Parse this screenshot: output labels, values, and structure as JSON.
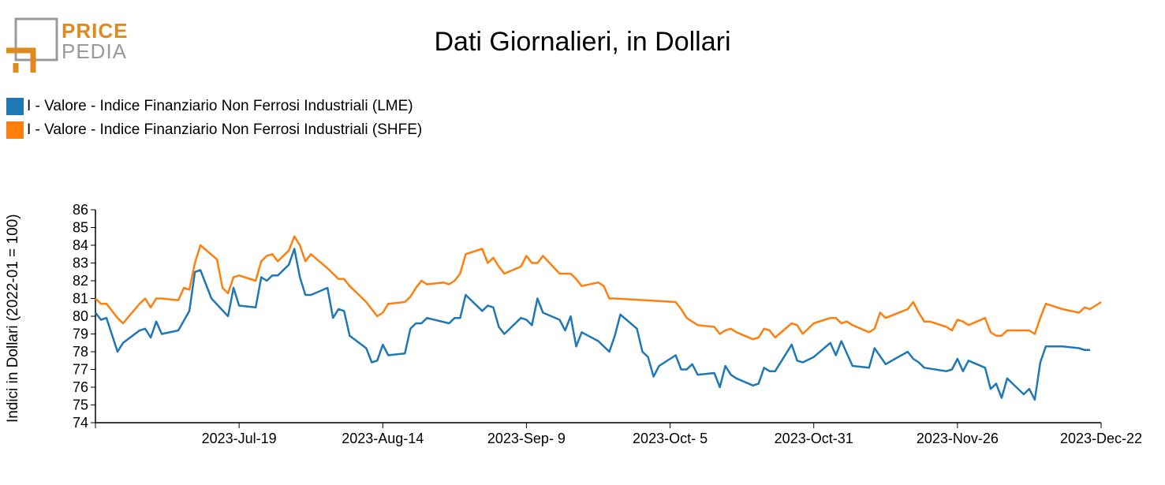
{
  "logo": {
    "line1": "PRICE",
    "line2": "PEDIA"
  },
  "chart_data": {
    "type": "line",
    "title": "Dati Giornalieri, in Dollari",
    "xlabel": "",
    "ylabel": "Indici in Dollari (2022-01 = 100)",
    "ylim": [
      74,
      86
    ],
    "yticks": [
      74,
      75,
      76,
      77,
      78,
      79,
      80,
      81,
      82,
      83,
      84,
      85,
      86
    ],
    "xlim": [
      "2023-06-23",
      "2023-12-22"
    ],
    "xtick_labels": [
      "2023-Jul-19",
      "2023-Aug-14",
      "2023-Sep- 9",
      "2023-Oct- 5",
      "2023-Oct-31",
      "2023-Nov-26",
      "2023-Dec-22"
    ],
    "xtick_dates": [
      "2023-07-19",
      "2023-08-14",
      "2023-09-09",
      "2023-10-05",
      "2023-10-31",
      "2023-11-26",
      "2023-12-22"
    ],
    "grid": false,
    "legend_position": "top-left",
    "series": [
      {
        "name": "I - Valore - Indice Finanziario Non Ferrosi Industriali (LME)",
        "color": "#1f77b4",
        "points": [
          [
            "2023-06-23",
            80.2
          ],
          [
            "2023-06-24",
            79.8
          ],
          [
            "2023-06-25",
            79.9
          ],
          [
            "2023-06-27",
            78.0
          ],
          [
            "2023-06-28",
            78.5
          ],
          [
            "2023-07-01",
            79.2
          ],
          [
            "2023-07-02",
            79.3
          ],
          [
            "2023-07-03",
            78.8
          ],
          [
            "2023-07-04",
            79.7
          ],
          [
            "2023-07-05",
            79.0
          ],
          [
            "2023-07-08",
            79.2
          ],
          [
            "2023-07-10",
            80.3
          ],
          [
            "2023-07-11",
            82.5
          ],
          [
            "2023-07-12",
            82.6
          ],
          [
            "2023-07-14",
            81.0
          ],
          [
            "2023-07-17",
            80.0
          ],
          [
            "2023-07-18",
            81.6
          ],
          [
            "2023-07-19",
            80.6
          ],
          [
            "2023-07-22",
            80.5
          ],
          [
            "2023-07-23",
            82.2
          ],
          [
            "2023-07-24",
            82.0
          ],
          [
            "2023-07-25",
            82.3
          ],
          [
            "2023-07-26",
            82.3
          ],
          [
            "2023-07-28",
            82.9
          ],
          [
            "2023-07-29",
            83.8
          ],
          [
            "2023-07-30",
            82.2
          ],
          [
            "2023-07-31",
            81.2
          ],
          [
            "2023-08-01",
            81.2
          ],
          [
            "2023-08-04",
            81.6
          ],
          [
            "2023-08-05",
            79.9
          ],
          [
            "2023-08-06",
            80.4
          ],
          [
            "2023-08-07",
            80.3
          ],
          [
            "2023-08-08",
            78.9
          ],
          [
            "2023-08-11",
            78.2
          ],
          [
            "2023-08-12",
            77.4
          ],
          [
            "2023-08-13",
            77.5
          ],
          [
            "2023-08-14",
            78.4
          ],
          [
            "2023-08-15",
            77.8
          ],
          [
            "2023-08-18",
            77.9
          ],
          [
            "2023-08-19",
            79.3
          ],
          [
            "2023-08-20",
            79.6
          ],
          [
            "2023-08-21",
            79.6
          ],
          [
            "2023-08-22",
            79.9
          ],
          [
            "2023-08-26",
            79.6
          ],
          [
            "2023-08-27",
            79.9
          ],
          [
            "2023-08-28",
            79.9
          ],
          [
            "2023-08-29",
            81.2
          ],
          [
            "2023-09-01",
            80.3
          ],
          [
            "2023-09-02",
            80.6
          ],
          [
            "2023-09-03",
            80.5
          ],
          [
            "2023-09-04",
            79.4
          ],
          [
            "2023-09-05",
            79.0
          ],
          [
            "2023-09-08",
            79.9
          ],
          [
            "2023-09-09",
            79.8
          ],
          [
            "2023-09-10",
            79.5
          ],
          [
            "2023-09-11",
            81.0
          ],
          [
            "2023-09-12",
            80.2
          ],
          [
            "2023-09-15",
            79.8
          ],
          [
            "2023-09-16",
            79.2
          ],
          [
            "2023-09-17",
            80.0
          ],
          [
            "2023-09-18",
            78.3
          ],
          [
            "2023-09-19",
            79.1
          ],
          [
            "2023-09-22",
            78.6
          ],
          [
            "2023-09-24",
            78.0
          ],
          [
            "2023-09-25",
            78.9
          ],
          [
            "2023-09-26",
            80.1
          ],
          [
            "2023-09-29",
            79.3
          ],
          [
            "2023-09-30",
            78.0
          ],
          [
            "2023-10-01",
            77.7
          ],
          [
            "2023-10-02",
            76.6
          ],
          [
            "2023-10-03",
            77.2
          ],
          [
            "2023-10-06",
            77.8
          ],
          [
            "2023-10-07",
            77.0
          ],
          [
            "2023-10-08",
            77.0
          ],
          [
            "2023-10-09",
            77.3
          ],
          [
            "2023-10-10",
            76.7
          ],
          [
            "2023-10-13",
            76.8
          ],
          [
            "2023-10-14",
            76.0
          ],
          [
            "2023-10-15",
            77.2
          ],
          [
            "2023-10-16",
            76.7
          ],
          [
            "2023-10-17",
            76.5
          ],
          [
            "2023-10-20",
            76.1
          ],
          [
            "2023-10-21",
            76.2
          ],
          [
            "2023-10-22",
            77.1
          ],
          [
            "2023-10-23",
            76.9
          ],
          [
            "2023-10-24",
            76.9
          ],
          [
            "2023-10-27",
            78.4
          ],
          [
            "2023-10-28",
            77.5
          ],
          [
            "2023-10-29",
            77.4
          ],
          [
            "2023-10-31",
            77.7
          ],
          [
            "2023-11-03",
            78.5
          ],
          [
            "2023-11-04",
            77.8
          ],
          [
            "2023-11-05",
            78.6
          ],
          [
            "2023-11-07",
            77.2
          ],
          [
            "2023-11-10",
            77.1
          ],
          [
            "2023-11-11",
            78.2
          ],
          [
            "2023-11-13",
            77.3
          ],
          [
            "2023-11-17",
            78.0
          ],
          [
            "2023-11-18",
            77.6
          ],
          [
            "2023-11-19",
            77.4
          ],
          [
            "2023-11-20",
            77.1
          ],
          [
            "2023-11-24",
            76.9
          ],
          [
            "2023-11-25",
            77.0
          ],
          [
            "2023-11-26",
            77.6
          ],
          [
            "2023-11-27",
            76.9
          ],
          [
            "2023-11-28",
            77.5
          ],
          [
            "2023-12-01",
            77.1
          ],
          [
            "2023-12-02",
            75.9
          ],
          [
            "2023-12-03",
            76.2
          ],
          [
            "2023-12-04",
            75.4
          ],
          [
            "2023-12-05",
            76.5
          ],
          [
            "2023-12-08",
            75.6
          ],
          [
            "2023-12-09",
            75.9
          ],
          [
            "2023-12-10",
            75.3
          ],
          [
            "2023-12-11",
            77.4
          ],
          [
            "2023-12-12",
            78.3
          ],
          [
            "2023-12-15",
            78.3
          ],
          [
            "2023-12-18",
            78.2
          ],
          [
            "2023-12-19",
            78.1
          ],
          [
            "2023-12-20",
            78.1
          ]
        ]
      },
      {
        "name": "I - Valore - Indice Finanziario Non Ferrosi Industriali (SHFE)",
        "color": "#ff7f0e",
        "points": [
          [
            "2023-06-23",
            81.0
          ],
          [
            "2023-06-24",
            80.7
          ],
          [
            "2023-06-25",
            80.7
          ],
          [
            "2023-06-27",
            79.9
          ],
          [
            "2023-06-28",
            79.6
          ],
          [
            "2023-07-01",
            80.7
          ],
          [
            "2023-07-02",
            81.0
          ],
          [
            "2023-07-03",
            80.5
          ],
          [
            "2023-07-04",
            81.0
          ],
          [
            "2023-07-05",
            81.0
          ],
          [
            "2023-07-08",
            80.9
          ],
          [
            "2023-07-09",
            81.6
          ],
          [
            "2023-07-10",
            81.5
          ],
          [
            "2023-07-11",
            83.0
          ],
          [
            "2023-07-12",
            84.0
          ],
          [
            "2023-07-15",
            83.2
          ],
          [
            "2023-07-16",
            81.6
          ],
          [
            "2023-07-17",
            81.3
          ],
          [
            "2023-07-18",
            82.2
          ],
          [
            "2023-07-19",
            82.3
          ],
          [
            "2023-07-22",
            82.0
          ],
          [
            "2023-07-23",
            83.1
          ],
          [
            "2023-07-24",
            83.4
          ],
          [
            "2023-07-25",
            83.5
          ],
          [
            "2023-07-26",
            83.1
          ],
          [
            "2023-07-28",
            83.7
          ],
          [
            "2023-07-29",
            84.5
          ],
          [
            "2023-07-30",
            84.0
          ],
          [
            "2023-07-31",
            83.1
          ],
          [
            "2023-08-01",
            83.5
          ],
          [
            "2023-08-04",
            82.7
          ],
          [
            "2023-08-05",
            82.4
          ],
          [
            "2023-08-06",
            82.1
          ],
          [
            "2023-08-07",
            82.1
          ],
          [
            "2023-08-08",
            81.7
          ],
          [
            "2023-08-11",
            80.8
          ],
          [
            "2023-08-12",
            80.4
          ],
          [
            "2023-08-13",
            80.0
          ],
          [
            "2023-08-14",
            80.2
          ],
          [
            "2023-08-15",
            80.7
          ],
          [
            "2023-08-18",
            80.8
          ],
          [
            "2023-08-19",
            81.1
          ],
          [
            "2023-08-20",
            81.6
          ],
          [
            "2023-08-21",
            82.0
          ],
          [
            "2023-08-22",
            81.8
          ],
          [
            "2023-08-25",
            81.9
          ],
          [
            "2023-08-26",
            81.8
          ],
          [
            "2023-08-27",
            82.0
          ],
          [
            "2023-08-28",
            82.4
          ],
          [
            "2023-08-29",
            83.5
          ],
          [
            "2023-09-01",
            83.8
          ],
          [
            "2023-09-02",
            83.0
          ],
          [
            "2023-09-03",
            83.3
          ],
          [
            "2023-09-04",
            82.8
          ],
          [
            "2023-09-05",
            82.4
          ],
          [
            "2023-09-08",
            82.8
          ],
          [
            "2023-09-09",
            83.4
          ],
          [
            "2023-09-10",
            83.0
          ],
          [
            "2023-09-11",
            83.0
          ],
          [
            "2023-09-12",
            83.4
          ],
          [
            "2023-09-15",
            82.4
          ],
          [
            "2023-09-17",
            82.4
          ],
          [
            "2023-09-18",
            82.1
          ],
          [
            "2023-09-19",
            81.7
          ],
          [
            "2023-09-22",
            81.9
          ],
          [
            "2023-09-23",
            81.7
          ],
          [
            "2023-09-24",
            81.0
          ],
          [
            "2023-09-25",
            81.0
          ],
          [
            "2023-10-06",
            80.8
          ],
          [
            "2023-10-07",
            80.4
          ],
          [
            "2023-10-08",
            79.9
          ],
          [
            "2023-10-10",
            79.5
          ],
          [
            "2023-10-13",
            79.4
          ],
          [
            "2023-10-14",
            79.0
          ],
          [
            "2023-10-15",
            79.2
          ],
          [
            "2023-10-16",
            79.3
          ],
          [
            "2023-10-17",
            79.1
          ],
          [
            "2023-10-20",
            78.7
          ],
          [
            "2023-10-21",
            78.8
          ],
          [
            "2023-10-22",
            79.3
          ],
          [
            "2023-10-23",
            79.2
          ],
          [
            "2023-10-24",
            78.8
          ],
          [
            "2023-10-27",
            79.6
          ],
          [
            "2023-10-28",
            79.5
          ],
          [
            "2023-10-29",
            79.0
          ],
          [
            "2023-10-31",
            79.6
          ],
          [
            "2023-11-03",
            79.9
          ],
          [
            "2023-11-04",
            79.9
          ],
          [
            "2023-11-05",
            79.6
          ],
          [
            "2023-11-06",
            79.7
          ],
          [
            "2023-11-07",
            79.5
          ],
          [
            "2023-11-10",
            79.1
          ],
          [
            "2023-11-11",
            79.3
          ],
          [
            "2023-11-12",
            80.2
          ],
          [
            "2023-11-13",
            79.9
          ],
          [
            "2023-11-17",
            80.4
          ],
          [
            "2023-11-18",
            80.8
          ],
          [
            "2023-11-19",
            80.2
          ],
          [
            "2023-11-20",
            79.7
          ],
          [
            "2023-11-21",
            79.7
          ],
          [
            "2023-11-24",
            79.4
          ],
          [
            "2023-11-25",
            79.2
          ],
          [
            "2023-11-26",
            79.8
          ],
          [
            "2023-11-27",
            79.7
          ],
          [
            "2023-11-28",
            79.5
          ],
          [
            "2023-12-01",
            79.9
          ],
          [
            "2023-12-02",
            79.1
          ],
          [
            "2023-12-03",
            78.9
          ],
          [
            "2023-12-04",
            78.9
          ],
          [
            "2023-12-05",
            79.2
          ],
          [
            "2023-12-08",
            79.2
          ],
          [
            "2023-12-09",
            79.2
          ],
          [
            "2023-12-10",
            79.0
          ],
          [
            "2023-12-11",
            79.9
          ],
          [
            "2023-12-12",
            80.7
          ],
          [
            "2023-12-15",
            80.4
          ],
          [
            "2023-12-18",
            80.2
          ],
          [
            "2023-12-19",
            80.5
          ],
          [
            "2023-12-20",
            80.4
          ],
          [
            "2023-12-21",
            80.6
          ],
          [
            "2023-12-22",
            80.8
          ]
        ]
      }
    ]
  }
}
